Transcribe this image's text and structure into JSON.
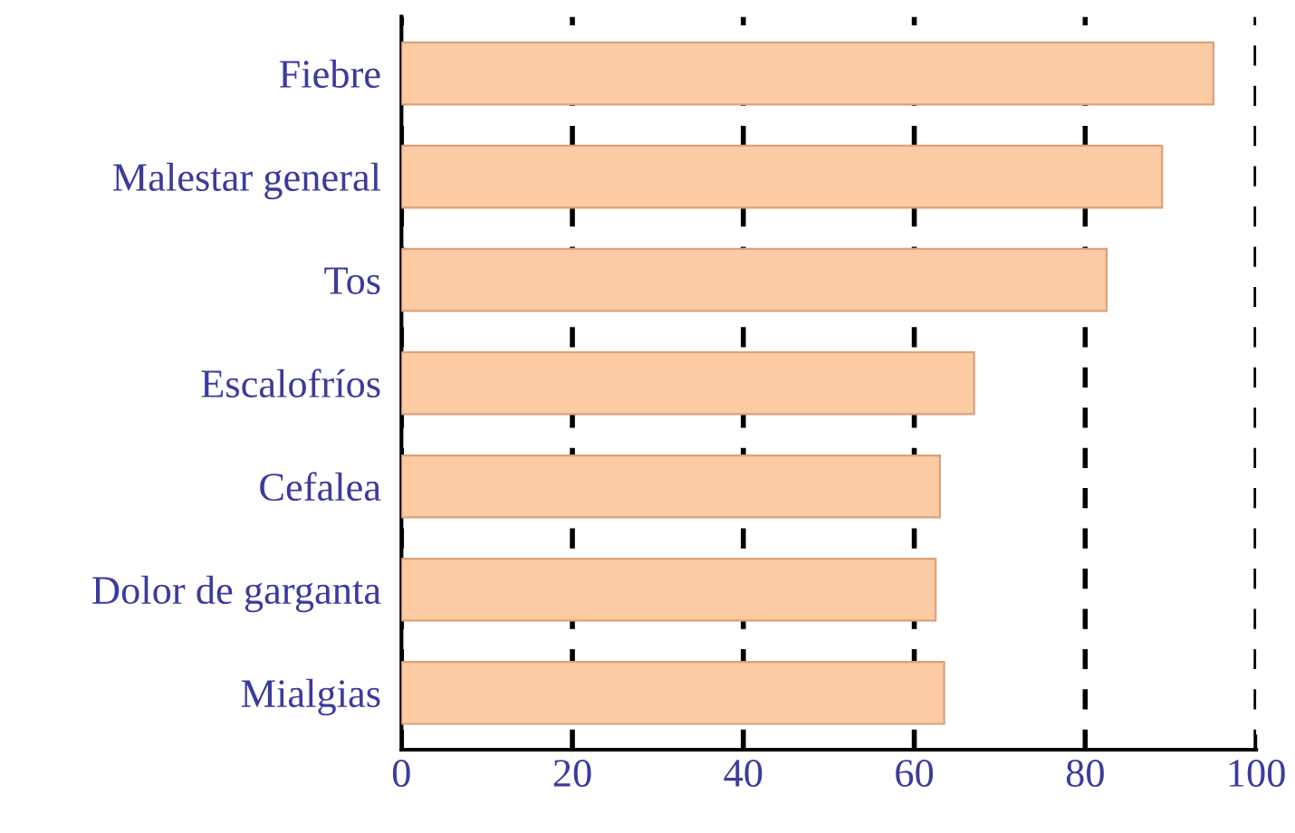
{
  "chart_data": {
    "type": "bar",
    "orientation": "horizontal",
    "categories": [
      "Fiebre",
      "Malestar general",
      "Tos",
      "Escalofríos",
      "Cefalea",
      "Dolor de garganta",
      "Mialgias"
    ],
    "values": [
      95,
      89,
      82.5,
      67,
      63,
      62.5,
      63.5
    ],
    "color": "#fccba4",
    "xlim": [
      0,
      100
    ],
    "xticks": [
      0,
      20,
      40,
      60,
      80,
      100
    ],
    "grid": "x",
    "line_style": "dashed"
  }
}
